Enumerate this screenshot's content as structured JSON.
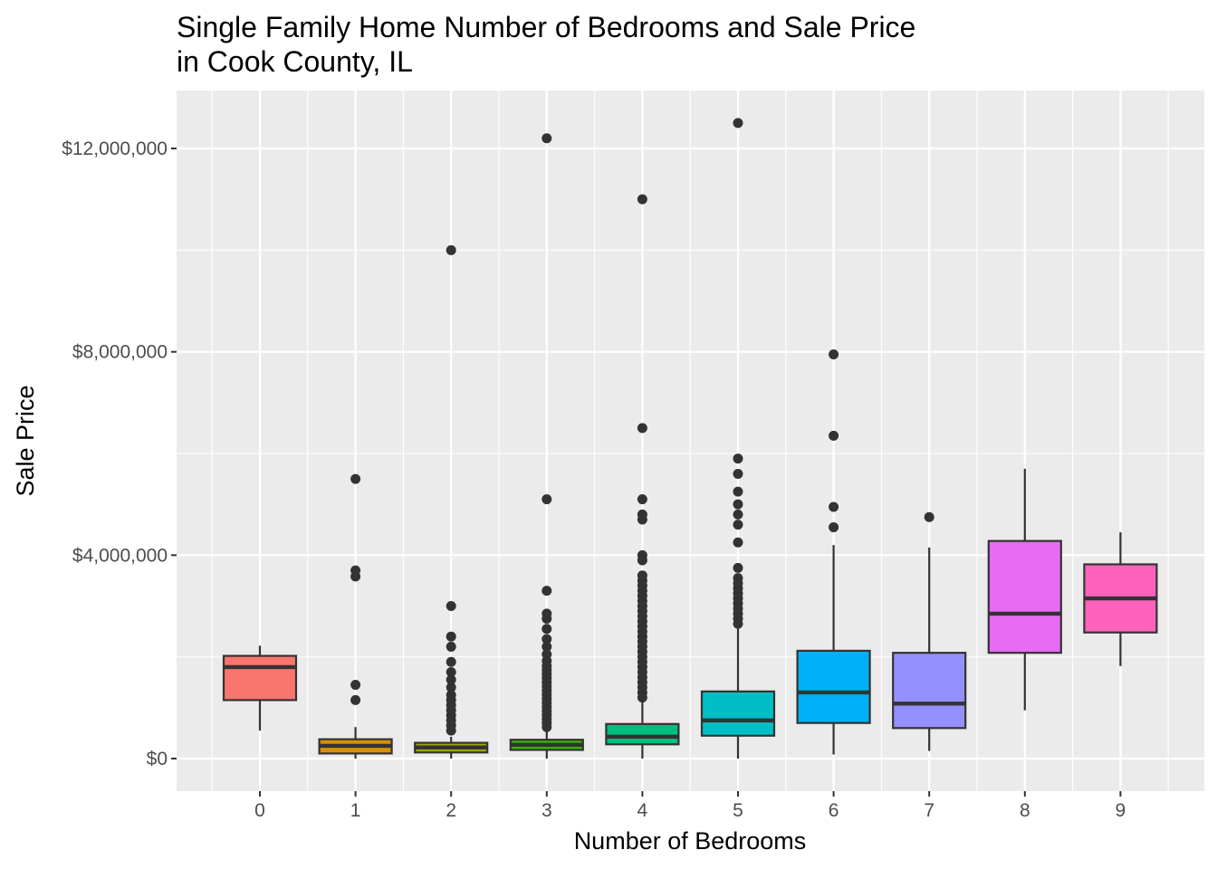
{
  "chart_data": {
    "type": "boxplot",
    "title": "Single Family Home Number of Bedrooms and Sale Price",
    "subtitle": "in Cook County, IL",
    "xlabel": "Number of Bedrooms",
    "ylabel": "Sale Price",
    "ylim": [
      -600000,
      13000000
    ],
    "grid": true,
    "legend": "none",
    "y_ticks": [
      {
        "value": 0,
        "label": "$0"
      },
      {
        "value": 4000000,
        "label": "$4,000,000"
      },
      {
        "value": 8000000,
        "label": "$8,000,000"
      },
      {
        "value": 12000000,
        "label": "$12,000,000"
      }
    ],
    "categories": [
      "0",
      "1",
      "2",
      "3",
      "4",
      "5",
      "6",
      "7",
      "8",
      "9"
    ],
    "boxes": [
      {
        "category": "0",
        "color": "#F8766D",
        "whisker_low": 550000,
        "q1": 1150000,
        "median": 1800000,
        "q3": 2020000,
        "whisker_high": 2220000,
        "outliers": []
      },
      {
        "category": "1",
        "color": "#D89000",
        "whisker_low": 0,
        "q1": 100000,
        "median": 250000,
        "q3": 380000,
        "whisker_high": 620000,
        "outliers": [
          1150000,
          1450000,
          3580000,
          3700000,
          5500000
        ]
      },
      {
        "category": "2",
        "color": "#A3A500",
        "whisker_low": 0,
        "q1": 120000,
        "median": 220000,
        "q3": 310000,
        "whisker_high": 430000,
        "outliers": [
          550000,
          650000,
          750000,
          850000,
          950000,
          1050000,
          1150000,
          1250000,
          1400000,
          1550000,
          1700000,
          1900000,
          2200000,
          2400000,
          3000000,
          10000000
        ]
      },
      {
        "category": "3",
        "color": "#39B600",
        "whisker_low": 0,
        "q1": 170000,
        "median": 270000,
        "q3": 370000,
        "whisker_high": 530000,
        "outliers": [
          620000,
          700000,
          780000,
          860000,
          940000,
          1020000,
          1100000,
          1180000,
          1260000,
          1340000,
          1420000,
          1500000,
          1580000,
          1660000,
          1740000,
          1820000,
          1920000,
          2050000,
          2200000,
          2350000,
          2550000,
          2750000,
          2850000,
          3300000,
          5100000,
          12200000
        ]
      },
      {
        "category": "4",
        "color": "#00BF7D",
        "whisker_low": 0,
        "q1": 280000,
        "median": 430000,
        "q3": 680000,
        "whisker_high": 1150000,
        "outliers": [
          1200000,
          1300000,
          1400000,
          1500000,
          1600000,
          1700000,
          1800000,
          1900000,
          2000000,
          2100000,
          2200000,
          2300000,
          2400000,
          2500000,
          2600000,
          2700000,
          2800000,
          2900000,
          3000000,
          3100000,
          3200000,
          3300000,
          3400000,
          3500000,
          3600000,
          3900000,
          4000000,
          4700000,
          4800000,
          5100000,
          6500000,
          11000000
        ]
      },
      {
        "category": "5",
        "color": "#00BFC4",
        "whisker_low": 0,
        "q1": 450000,
        "median": 750000,
        "q3": 1320000,
        "whisker_high": 2600000,
        "outliers": [
          2650000,
          2750000,
          2850000,
          2950000,
          3050000,
          3150000,
          3250000,
          3350000,
          3450000,
          3550000,
          3750000,
          4250000,
          4600000,
          4800000,
          5000000,
          5250000,
          5600000,
          5900000,
          12500000
        ]
      },
      {
        "category": "6",
        "color": "#00B0F6",
        "whisker_low": 80000,
        "q1": 700000,
        "median": 1300000,
        "q3": 2120000,
        "whisker_high": 4200000,
        "outliers": [
          4550000,
          4950000,
          6350000,
          7950000
        ]
      },
      {
        "category": "7",
        "color": "#9590FF",
        "whisker_low": 150000,
        "q1": 600000,
        "median": 1080000,
        "q3": 2080000,
        "whisker_high": 4150000,
        "outliers": [
          4750000
        ]
      },
      {
        "category": "8",
        "color": "#E76BF3",
        "whisker_low": 950000,
        "q1": 2080000,
        "median": 2850000,
        "q3": 4280000,
        "whisker_high": 5700000,
        "outliers": []
      },
      {
        "category": "9",
        "color": "#FF62BC",
        "whisker_low": 1820000,
        "q1": 2480000,
        "median": 3150000,
        "q3": 3820000,
        "whisker_high": 4450000,
        "outliers": []
      }
    ]
  }
}
